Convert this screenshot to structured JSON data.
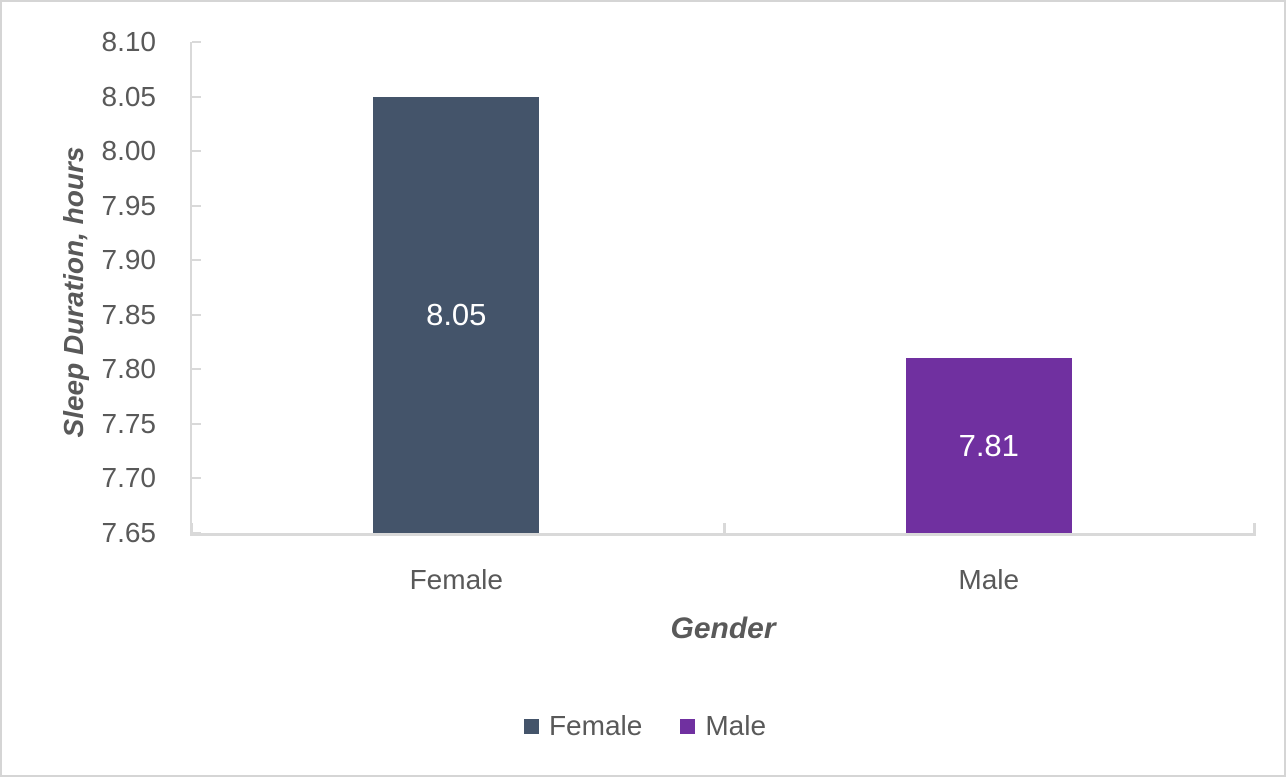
{
  "chart_data": {
    "type": "bar",
    "title": "",
    "xlabel": "Gender",
    "ylabel": "Sleep Duration, hours",
    "categories": [
      "Female",
      "Male"
    ],
    "series": [
      {
        "name": "Female",
        "value": 8.05,
        "data_label": "8.05",
        "color": "#44546A"
      },
      {
        "name": "Male",
        "value": 7.81,
        "data_label": "7.81",
        "color": "#7030A0"
      }
    ],
    "ylim": [
      7.65,
      8.1
    ],
    "ytick_step": 0.05,
    "ytick_labels": [
      "7.65",
      "7.70",
      "7.75",
      "7.80",
      "7.85",
      "7.90",
      "7.95",
      "8.00",
      "8.05",
      "8.10"
    ],
    "grid": false,
    "legend": {
      "position": "bottom",
      "entries": [
        {
          "label": "Female",
          "color": "#44546A"
        },
        {
          "label": "Male",
          "color": "#7030A0"
        }
      ]
    },
    "colors": {
      "axis_line": "#D9D9D9",
      "text": "#595959",
      "data_label_text": "#FFFFFF",
      "frame_border": "#D5D5D5"
    }
  }
}
